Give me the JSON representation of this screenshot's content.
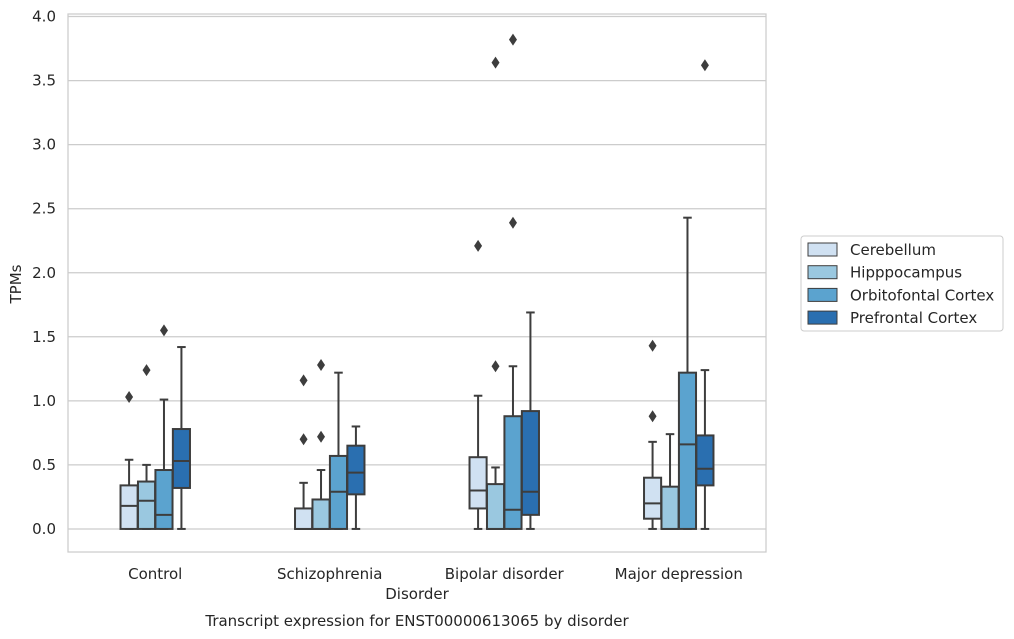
{
  "chart_data": {
    "type": "box",
    "title": "Transcript expression for ENST00000613065 by disorder",
    "xlabel": "Disorder",
    "ylabel": "TPMs",
    "ylim": [
      -0.18,
      4.02
    ],
    "yticks": [
      "0.0",
      "0.5",
      "1.0",
      "1.5",
      "2.0",
      "2.5",
      "3.0",
      "3.5",
      "4.0"
    ],
    "grid": "horizontal",
    "legend_position": "right",
    "categories": [
      "Control",
      "Schizophrenia",
      "Bipolar disorder",
      "Major depression"
    ],
    "series": [
      {
        "name": "Cerebellum",
        "color": "#d0e1f2",
        "boxes": [
          {
            "whislo": 0.0,
            "q1": 0.0,
            "med": 0.18,
            "q3": 0.34,
            "whishi": 0.54,
            "fliers": [
              1.03
            ]
          },
          {
            "whislo": 0.0,
            "q1": 0.0,
            "med": 0.0,
            "q3": 0.16,
            "whishi": 0.36,
            "fliers": [
              0.7,
              1.16
            ]
          },
          {
            "whislo": 0.0,
            "q1": 0.16,
            "med": 0.3,
            "q3": 0.56,
            "whishi": 1.04,
            "fliers": [
              2.21
            ]
          },
          {
            "whislo": 0.0,
            "q1": 0.08,
            "med": 0.2,
            "q3": 0.4,
            "whishi": 0.68,
            "fliers": [
              0.88,
              1.43
            ]
          }
        ]
      },
      {
        "name": "Hipppocampus",
        "color": "#9ac8e0",
        "boxes": [
          {
            "whislo": 0.0,
            "q1": 0.0,
            "med": 0.22,
            "q3": 0.37,
            "whishi": 0.5,
            "fliers": [
              1.24
            ]
          },
          {
            "whislo": 0.0,
            "q1": 0.0,
            "med": 0.0,
            "q3": 0.23,
            "whishi": 0.46,
            "fliers": [
              0.72,
              1.28
            ]
          },
          {
            "whislo": 0.0,
            "q1": 0.0,
            "med": 0.0,
            "q3": 0.35,
            "whishi": 0.48,
            "fliers": [
              1.27,
              3.64
            ]
          },
          {
            "whislo": 0.0,
            "q1": 0.0,
            "med": 0.0,
            "q3": 0.33,
            "whishi": 0.74,
            "fliers": []
          }
        ]
      },
      {
        "name": "Orbitofontal Cortex",
        "color": "#5ba3cf",
        "boxes": [
          {
            "whislo": 0.0,
            "q1": 0.0,
            "med": 0.11,
            "q3": 0.46,
            "whishi": 1.01,
            "fliers": [
              1.55
            ]
          },
          {
            "whislo": 0.0,
            "q1": 0.0,
            "med": 0.29,
            "q3": 0.57,
            "whishi": 1.22,
            "fliers": []
          },
          {
            "whislo": 0.0,
            "q1": 0.0,
            "med": 0.15,
            "q3": 0.88,
            "whishi": 1.27,
            "fliers": [
              2.39,
              3.82
            ]
          },
          {
            "whislo": 0.0,
            "q1": 0.0,
            "med": 0.66,
            "q3": 1.22,
            "whishi": 2.43,
            "fliers": []
          }
        ]
      },
      {
        "name": "Prefrontal Cortex",
        "color": "#2a6fb0",
        "boxes": [
          {
            "whislo": 0.0,
            "q1": 0.32,
            "med": 0.53,
            "q3": 0.78,
            "whishi": 1.42,
            "fliers": []
          },
          {
            "whislo": 0.0,
            "q1": 0.27,
            "med": 0.44,
            "q3": 0.65,
            "whishi": 0.8,
            "fliers": []
          },
          {
            "whislo": 0.0,
            "q1": 0.11,
            "med": 0.29,
            "q3": 0.92,
            "whishi": 1.69,
            "fliers": []
          },
          {
            "whislo": 0.0,
            "q1": 0.34,
            "med": 0.47,
            "q3": 0.73,
            "whishi": 1.24,
            "fliers": [
              3.62
            ]
          }
        ]
      }
    ]
  }
}
